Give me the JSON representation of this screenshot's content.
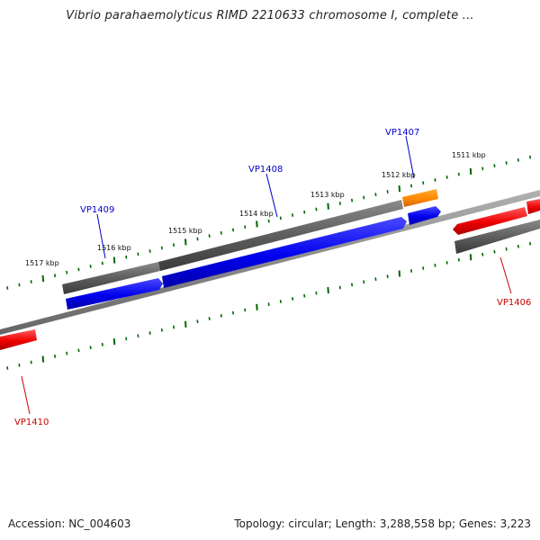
{
  "header": {
    "title": "Vibrio parahaemolyticus RIMD 2210633 chromosome I, complete ..."
  },
  "footer": {
    "accession": "Accession: NC_004603",
    "summary": "Topology: circular; Length: 3,288,558 bp; Genes: 3,223"
  },
  "scale": {
    "tick_labels": [
      "1511 kbp",
      "1512 kbp",
      "1513 kbp",
      "1514 kbp",
      "1515 kbp",
      "1516 kbp",
      "1517 kbp"
    ]
  },
  "genes": [
    {
      "name": "VP1407",
      "color": "#0000cc",
      "strand": "forward"
    },
    {
      "name": "VP1408",
      "color": "#0000cc",
      "strand": "forward"
    },
    {
      "name": "VP1409",
      "color": "#0000cc",
      "strand": "forward"
    },
    {
      "name": "VP1406",
      "color": "#cc0000",
      "strand": "reverse"
    },
    {
      "name": "VP1410",
      "color": "#cc0000",
      "strand": "reverse"
    }
  ],
  "colors": {
    "forward_gene": "#0000ee",
    "reverse_gene": "#ee0000",
    "rna_feature": "#ff8800",
    "gene_track": "#555555",
    "backbone": "#888888",
    "tick": "#006600"
  }
}
